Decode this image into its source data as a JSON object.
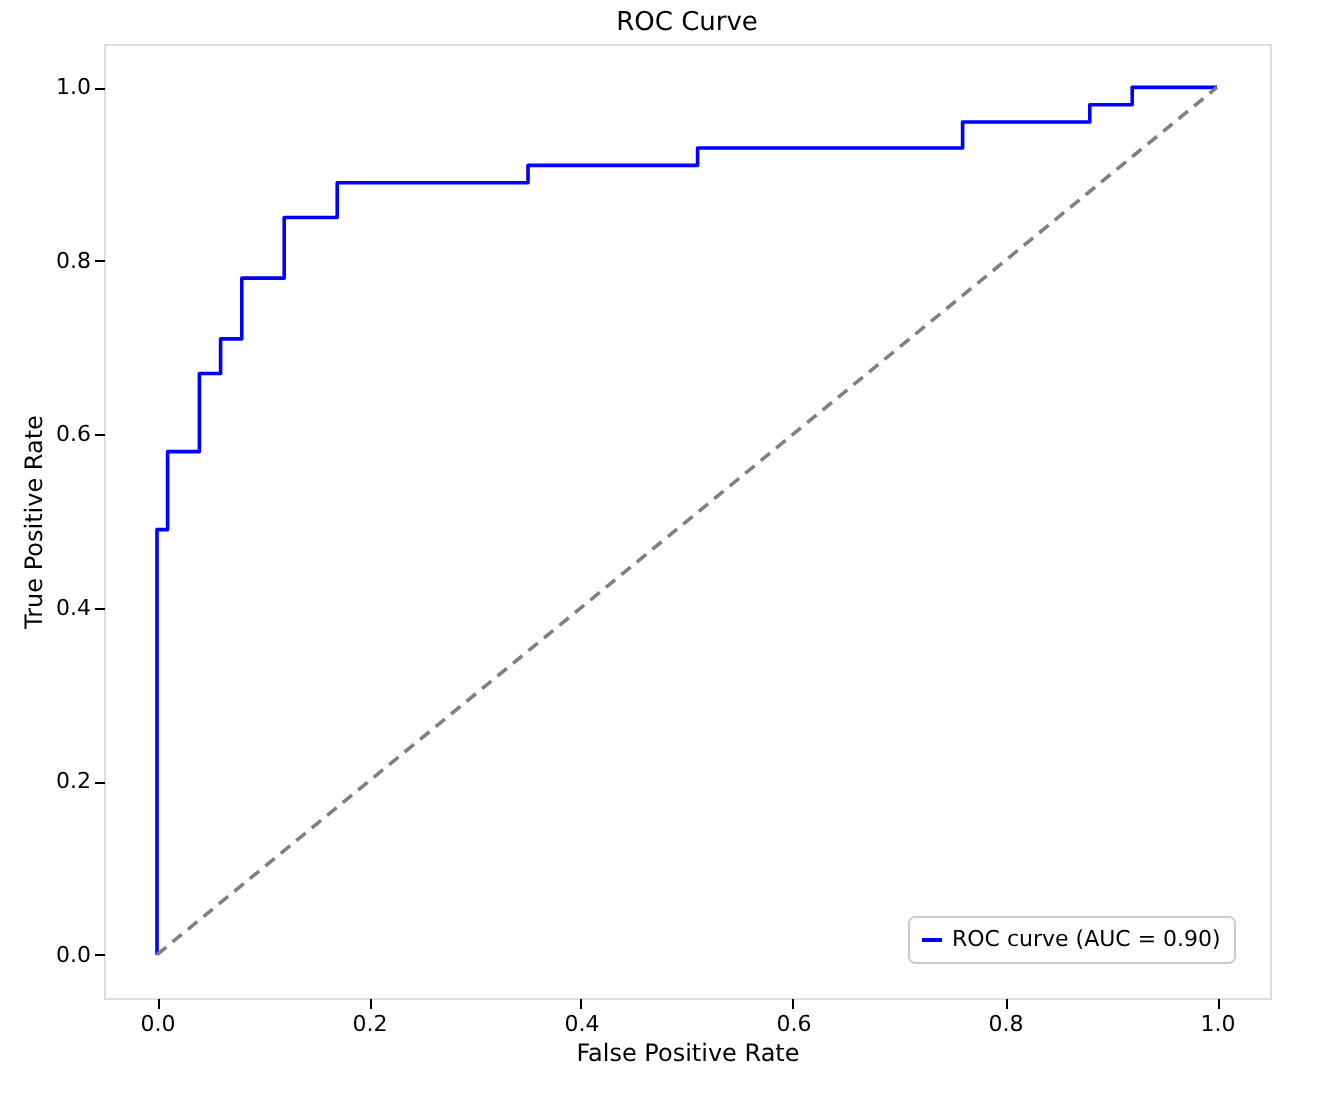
{
  "chart_data": {
    "type": "step",
    "title": "ROC Curve",
    "xlabel": "False Positive Rate",
    "ylabel": "True Positive Rate",
    "series": [
      {
        "name": "ROC curve (AUC = 0.90)",
        "color": "#0000ff",
        "line_style": "solid",
        "x": [
          0,
          0,
          0.01,
          0.04,
          0.06,
          0.08,
          0.12,
          0.17,
          0.35,
          0.51,
          0.76,
          0.88,
          0.92,
          1.0
        ],
        "values": [
          0,
          0.49,
          0.58,
          0.67,
          0.71,
          0.78,
          0.85,
          0.89,
          0.91,
          0.93,
          0.96,
          0.98,
          1.0,
          1.0
        ]
      },
      {
        "type": "line",
        "color": "#808080",
        "line_style": "dashed",
        "x": [
          0,
          1
        ],
        "values": [
          0,
          1
        ]
      }
    ],
    "xlim": [
      -0.05,
      1.05
    ],
    "ylim": [
      -0.05,
      1.05
    ],
    "xticks": [
      {
        "value": 0,
        "label": "0.0"
      },
      {
        "value": 0.2,
        "label": "0.2"
      },
      {
        "value": 0.4,
        "label": "0.4"
      },
      {
        "value": 0.6,
        "label": "0.6"
      },
      {
        "value": 0.8,
        "label": "0.8"
      },
      {
        "value": 1,
        "label": "1.0"
      }
    ],
    "yticks": [
      {
        "value": 0,
        "label": "0.0"
      },
      {
        "value": 0.2,
        "label": "0.2"
      },
      {
        "value": 0.4,
        "label": "0.4"
      },
      {
        "value": 0.6,
        "label": "0.6"
      },
      {
        "value": 0.8,
        "label": "0.8"
      },
      {
        "value": 1,
        "label": "1.0"
      }
    ],
    "grid": false,
    "legend": "bottom right",
    "marker": "none"
  }
}
